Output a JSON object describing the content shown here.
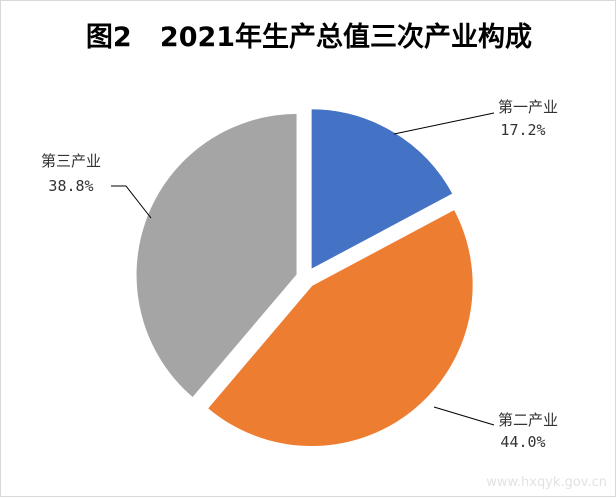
{
  "chart_data": {
    "type": "pie",
    "title": "图2   2021年生产总值三次产业构成",
    "slices": [
      {
        "name": "第一产业",
        "label": "17.2%",
        "value": 17.2,
        "color": "#4472C4"
      },
      {
        "name": "第二产业",
        "label": "44.0%",
        "value": 44.0,
        "color": "#ED7D31"
      },
      {
        "name": "第三产业",
        "label": "38.8%",
        "value": 38.8,
        "color": "#A5A5A5"
      }
    ]
  },
  "watermark": "www.hxqyk.gov.cn"
}
